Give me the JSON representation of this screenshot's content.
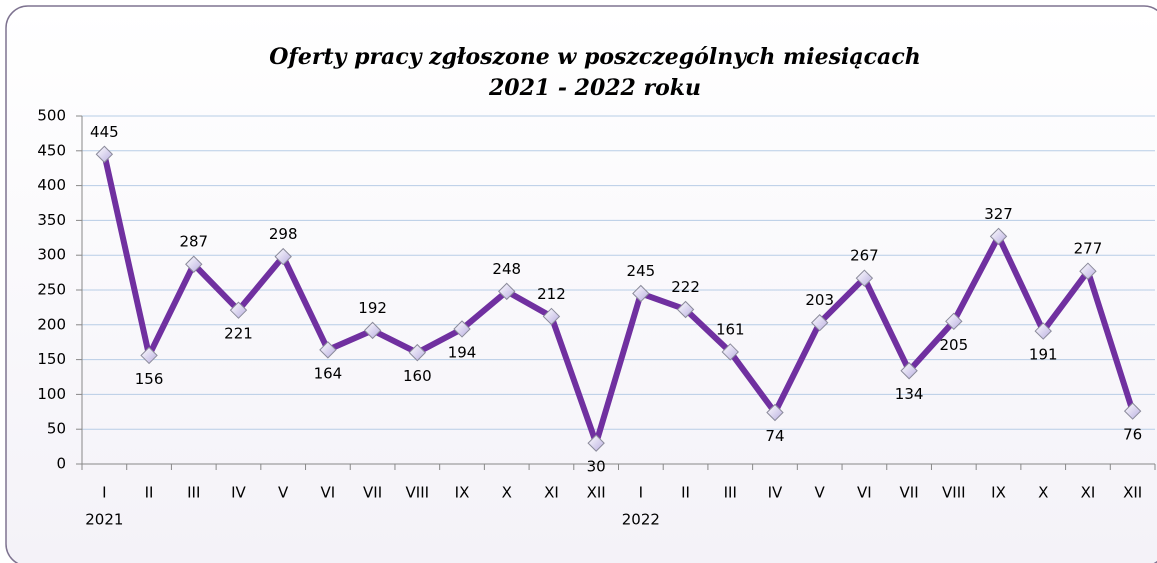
{
  "chart_data": {
    "type": "line",
    "title": [
      "Oferty pracy zgłoszone w poszczególnych miesiącach",
      "2021 - 2022 roku"
    ],
    "categories": [
      "I",
      "II",
      "III",
      "IV",
      "V",
      "VI",
      "VII",
      "VIII",
      "IX",
      "X",
      "XI",
      "XII",
      "I",
      "II",
      "III",
      "IV",
      "V",
      "VI",
      "VII",
      "VIII",
      "IX",
      "X",
      "XI",
      "XII"
    ],
    "category_groups": [
      {
        "label": "2021",
        "count": 12
      },
      {
        "label": "2022",
        "count": 12
      }
    ],
    "series": [
      {
        "color": "#7030a0",
        "values": [
          445,
          156,
          287,
          221,
          298,
          164,
          192,
          160,
          194,
          248,
          212,
          30,
          245,
          222,
          161,
          74,
          203,
          267,
          134,
          205,
          327,
          191,
          277,
          76
        ]
      }
    ],
    "ylim": [
      0,
      500
    ],
    "yticks": [
      0,
      50,
      100,
      150,
      200,
      250,
      300,
      350,
      400,
      450,
      500
    ],
    "grid": true
  }
}
